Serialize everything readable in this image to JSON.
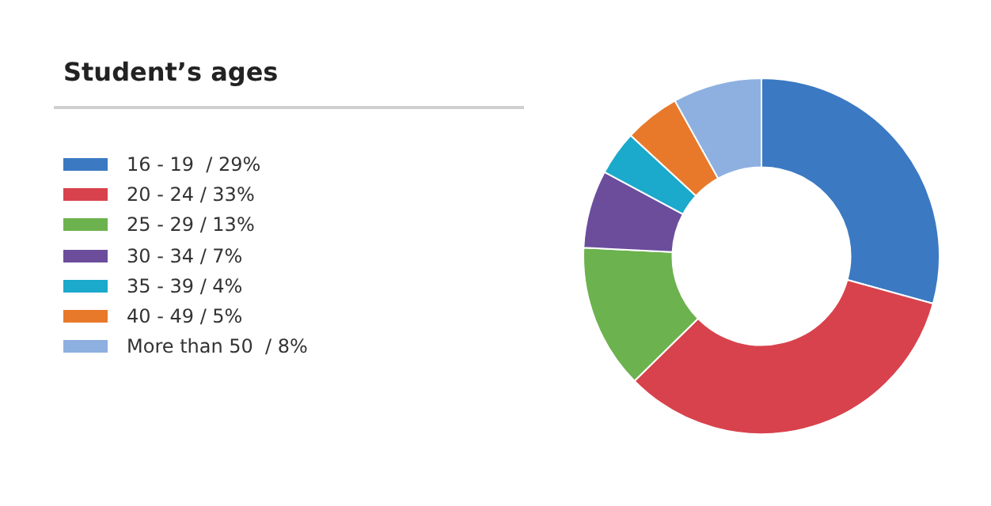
{
  "chart_data": {
    "type": "donut",
    "title": "Student’s ages",
    "categories": [
      "16 - 19  / 29%",
      "20 - 24 / 33%",
      "25 - 29 / 13%",
      "30 - 34 / 7%",
      "35 - 39 / 4%",
      "40 - 49 / 5%",
      "More than 50  / 8%"
    ],
    "values": [
      29,
      33,
      13,
      7,
      4,
      5,
      8
    ],
    "colors": [
      "#3b79c2",
      "#d8424c",
      "#6cb24e",
      "#6b4d9c",
      "#1ba9cc",
      "#e8792b",
      "#8db0e0"
    ],
    "legend": "left"
  }
}
